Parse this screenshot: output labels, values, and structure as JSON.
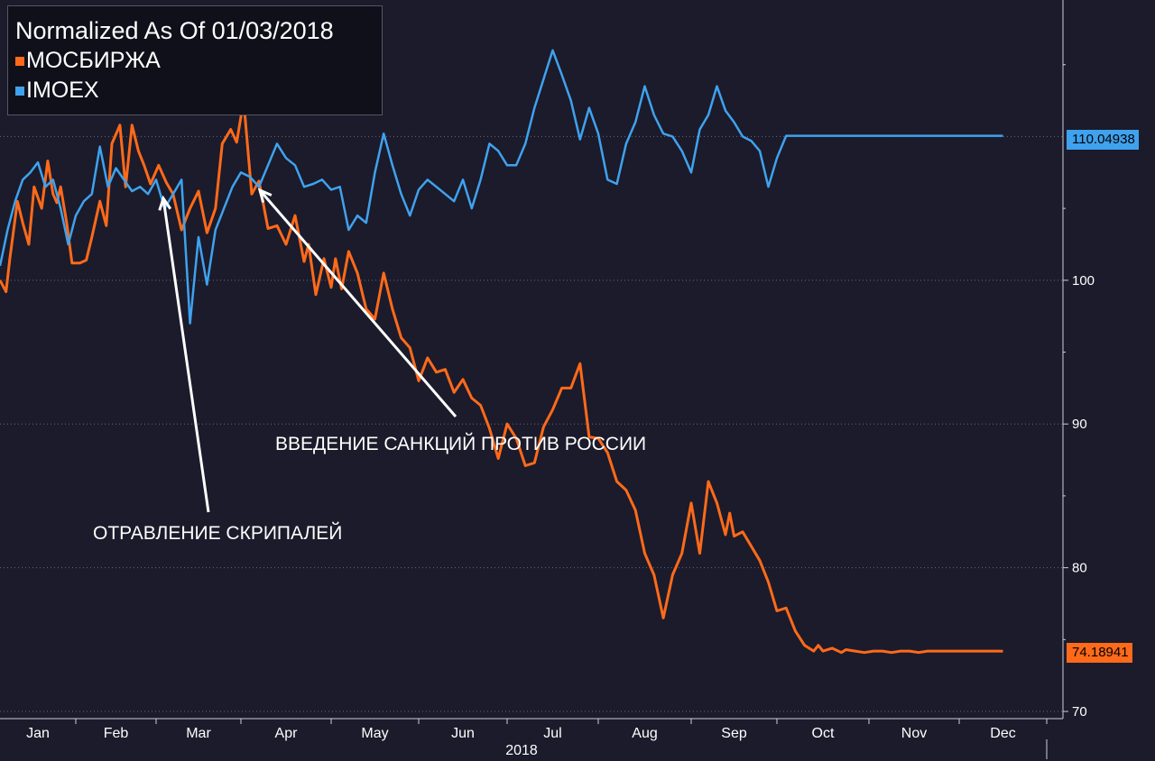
{
  "legend": {
    "title": "Normalized As Of 01/03/2018",
    "series": [
      {
        "name": "МОСБИРЖА",
        "color": "#ff6a1a"
      },
      {
        "name": "IMOEX",
        "color": "#3fa2ee"
      }
    ]
  },
  "annotations": {
    "skripal": "ОТРАВЛЕНИЕ СКРИПАЛЕЙ",
    "sanctions": "ВВЕДЕНИЕ САНКЦИЙ ПРОТИВ РОССИИ"
  },
  "end_labels": {
    "imoex": "110.04938",
    "mosbirzha": "74.18941"
  },
  "chart_data": {
    "type": "line",
    "title": "Normalized As Of 01/03/2018",
    "xlabel": "2018",
    "ylabel": "",
    "ylim": [
      69.5,
      119.5
    ],
    "xlim": [
      0,
      12
    ],
    "y_ticks": [
      70,
      80,
      90,
      100
    ],
    "x_tick_labels": [
      "Jan",
      "Feb",
      "Mar",
      "Apr",
      "May",
      "Jun",
      "Jul",
      "Aug",
      "Sep",
      "Oct",
      "Nov",
      "Dec"
    ],
    "year_label": "2018",
    "grid": true,
    "legend_position": "top-left",
    "series": [
      {
        "name": "МОСБИРЖА",
        "color": "#ff6a1a",
        "x": [
          0,
          0.08,
          0.13,
          0.23,
          0.3,
          0.38,
          0.45,
          0.55,
          0.63,
          0.7,
          0.75,
          0.8,
          0.88,
          0.95,
          1.05,
          1.13,
          1.2,
          1.3,
          1.38,
          1.45,
          1.55,
          1.62,
          1.7,
          1.78,
          1.85,
          1.93,
          2.03,
          2.12,
          2.2,
          2.3,
          2.4,
          2.5,
          2.6,
          2.7,
          2.78,
          2.88,
          2.95,
          3.03,
          3.12,
          3.2,
          3.3,
          3.4,
          3.5,
          3.6,
          3.7,
          3.75,
          3.83,
          3.92,
          4.0,
          4.05,
          4.12,
          4.2,
          4.3,
          4.4,
          4.5,
          4.6,
          4.7,
          4.8,
          4.9,
          5.0,
          5.1,
          5.2,
          5.3,
          5.4,
          5.5,
          5.6,
          5.7,
          5.8,
          5.9,
          6.0,
          6.1,
          6.2,
          6.3,
          6.4,
          6.5,
          6.6,
          6.7,
          6.8,
          6.9,
          7.0,
          7.1,
          7.2,
          7.3,
          7.4,
          7.5,
          7.6,
          7.7,
          7.8,
          7.9,
          8.0,
          8.1,
          8.2,
          8.3,
          8.4,
          8.45,
          8.5,
          8.6,
          8.7,
          8.8,
          8.9,
          9.0,
          9.1,
          9.2,
          9.3,
          9.4,
          9.45,
          9.5,
          9.6,
          9.7,
          9.75,
          9.85,
          9.95,
          10.05,
          10.15,
          10.25,
          10.35,
          10.45,
          10.55,
          10.65,
          10.75,
          10.85,
          10.95,
          11.05,
          11.15,
          11.25,
          11.35,
          11.45,
          11.5
        ],
        "values": [
          100,
          99.2,
          101.5,
          105.5,
          104,
          102.5,
          106.5,
          105,
          108.3,
          106,
          105.4,
          106.5,
          104,
          101.2,
          101.2,
          101.4,
          103,
          105.5,
          103.8,
          109.5,
          110.8,
          106.5,
          110.8,
          109,
          108,
          106.7,
          108,
          106.8,
          106,
          103.5,
          105,
          106.2,
          103.3,
          105,
          109.5,
          110.5,
          109.6,
          112.5,
          106,
          106.9,
          103.6,
          103.8,
          102.5,
          104.5,
          101.3,
          102.5,
          99,
          101.5,
          99.5,
          101.5,
          99.4,
          102,
          100.5,
          98,
          97.3,
          100.5,
          98,
          96,
          95.3,
          93,
          94.6,
          93.6,
          93.8,
          92.2,
          93.1,
          91.8,
          91.3,
          89.7,
          87.6,
          90,
          89,
          87.1,
          87.3,
          89.8,
          91,
          92.5,
          92.5,
          94.2,
          89.1,
          89,
          88,
          86,
          85.4,
          84,
          81,
          79.5,
          76.5,
          79.5,
          81,
          84.5,
          81,
          86,
          84.5,
          82.3,
          83.8,
          82.2,
          82.5,
          81.5,
          80.5,
          79,
          77,
          77.2,
          75.6,
          74.6,
          74.2,
          74.6,
          74.2,
          74.4,
          74.1,
          74.3,
          74.2,
          74.1,
          74.2,
          74.2,
          74.1,
          74.2,
          74.2,
          74.1,
          74.2,
          74.2,
          74.2,
          74.2,
          74.2,
          74.2,
          74.2,
          74.2,
          74.2,
          74.19
        ],
        "note_values_tail_hidden": false
      },
      {
        "name": "IMOEX",
        "color": "#3fa2ee",
        "x": [
          0,
          0.1,
          0.2,
          0.3,
          0.4,
          0.5,
          0.6,
          0.7,
          0.8,
          0.9,
          1.0,
          1.1,
          1.2,
          1.3,
          1.4,
          1.5,
          1.6,
          1.7,
          1.8,
          1.9,
          2.0,
          2.1,
          2.2,
          2.3,
          2.4,
          2.5,
          2.6,
          2.7,
          2.8,
          2.9,
          3.0,
          3.1,
          3.2,
          3.3,
          3.4,
          3.5,
          3.6,
          3.7,
          3.8,
          3.9,
          4.0,
          4.1,
          4.2,
          4.3,
          4.4,
          4.5,
          4.6,
          4.7,
          4.8,
          4.9,
          5.0,
          5.1,
          5.2,
          5.3,
          5.4,
          5.5,
          5.6,
          5.7,
          5.8,
          5.9,
          6.0,
          6.1,
          6.2,
          6.3,
          6.4,
          6.5,
          6.6,
          6.7,
          6.8,
          6.9,
          7.0,
          7.1,
          7.2,
          7.3,
          7.4,
          7.5,
          7.6,
          7.7,
          7.8,
          7.9,
          8.0,
          8.1,
          8.2,
          8.3,
          8.4,
          8.5,
          8.6,
          8.7,
          8.8,
          8.9,
          9.0,
          9.1,
          9.2,
          9.3,
          9.4,
          9.5,
          9.6,
          9.7,
          9.8,
          9.9,
          10.0,
          10.1,
          10.2,
          10.3,
          10.4,
          10.5,
          10.6,
          10.7,
          10.8,
          10.9,
          11.0,
          11.1,
          11.2,
          11.3,
          11.4,
          11.5
        ],
        "values": [
          101,
          103.5,
          105.5,
          107,
          107.5,
          108.2,
          106.5,
          107,
          105,
          102.5,
          104.5,
          105.5,
          106,
          109.3,
          106.5,
          107.8,
          107,
          106.2,
          106.5,
          106,
          107,
          105,
          106,
          107,
          97,
          103,
          99.7,
          103.5,
          105,
          106.5,
          107.5,
          107.2,
          106.5,
          108,
          109.5,
          108.5,
          108,
          106.5,
          106.7,
          107,
          106.3,
          106.5,
          103.5,
          104.5,
          104,
          107.5,
          110.2,
          108,
          106,
          104.5,
          106.3,
          107,
          106.5,
          106,
          105.5,
          107,
          105,
          107,
          109.5,
          109,
          108,
          108,
          109.5,
          112,
          114,
          116,
          114.3,
          112.5,
          109.8,
          112,
          110.2,
          107,
          106.7,
          109.5,
          111,
          113.5,
          111.5,
          110.2,
          110,
          109,
          107.5,
          110.5,
          111.5,
          113.5,
          111.8,
          111,
          110,
          109.7,
          109,
          106.5,
          108.5,
          110.05,
          110.05,
          110.05,
          110.05,
          110.05,
          110.05,
          110.05,
          110.05,
          110.05,
          110.05,
          110.05,
          110.05,
          110.05,
          110.05,
          110.05,
          110.05,
          110.05,
          110.05,
          110.05,
          110.05,
          110.05,
          110.05,
          110.05,
          110.05,
          110.05
        ]
      }
    ]
  }
}
